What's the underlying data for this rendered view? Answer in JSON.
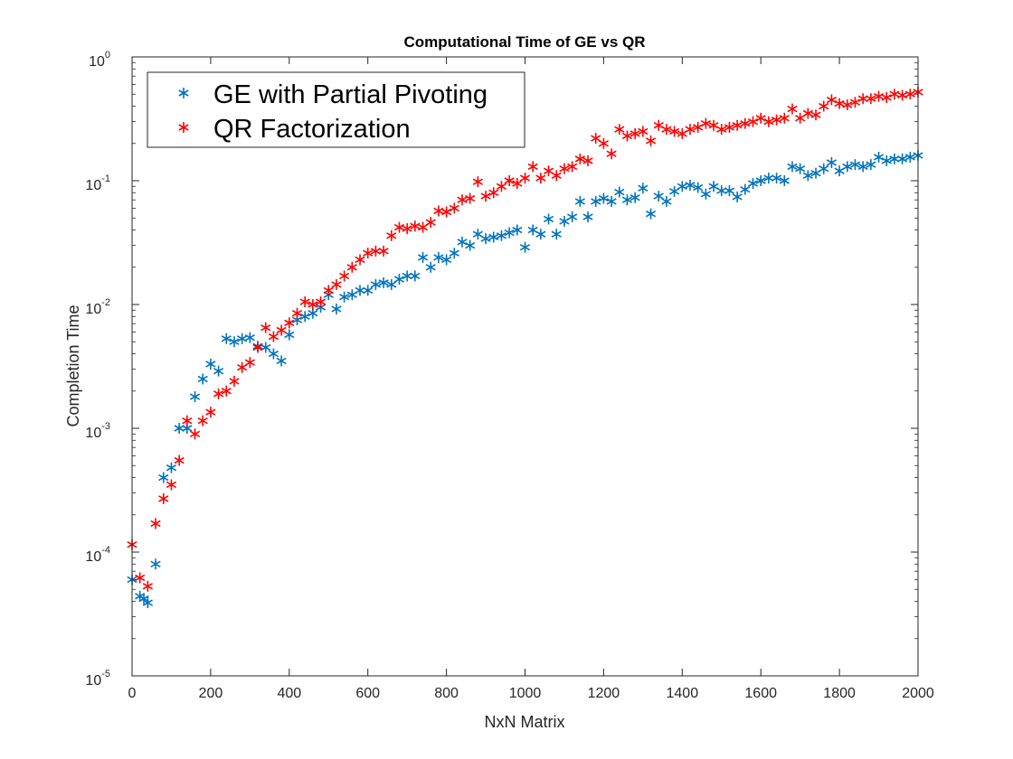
{
  "chart_data": {
    "type": "scatter",
    "title": "Computational Time of GE vs QR",
    "xlabel": "NxN Matrix",
    "ylabel": "Completion Time",
    "xlim": [
      0,
      2000
    ],
    "ylim_exponents": [
      -5,
      0
    ],
    "yscale": "log",
    "grid": false,
    "legend_position": "top-left",
    "marker": "asterisk",
    "x_ticks": [
      0,
      200,
      400,
      600,
      800,
      1000,
      1200,
      1400,
      1600,
      1800,
      2000
    ],
    "y_ticks": [
      {
        "base": "10",
        "exp": "-5"
      },
      {
        "base": "10",
        "exp": "-4"
      },
      {
        "base": "10",
        "exp": "-3"
      },
      {
        "base": "10",
        "exp": "-2"
      },
      {
        "base": "10",
        "exp": "-1"
      },
      {
        "base": "10",
        "exp": "0"
      }
    ],
    "series": [
      {
        "name": "GE with Partial Pivoting",
        "color": "#0072BD",
        "points": [
          [
            0,
            6e-05
          ],
          [
            20,
            4.4e-05
          ],
          [
            30,
            4.2e-05
          ],
          [
            40,
            3.9e-05
          ],
          [
            60,
            8e-05
          ],
          [
            80,
            0.0004
          ],
          [
            100,
            0.00048
          ],
          [
            120,
            0.001
          ],
          [
            140,
            0.001
          ],
          [
            160,
            0.0018
          ],
          [
            180,
            0.0025
          ],
          [
            200,
            0.0033
          ],
          [
            220,
            0.0029
          ],
          [
            240,
            0.0053
          ],
          [
            260,
            0.005
          ],
          [
            280,
            0.0053
          ],
          [
            300,
            0.0054
          ],
          [
            320,
            0.0046
          ],
          [
            340,
            0.0045
          ],
          [
            360,
            0.004
          ],
          [
            380,
            0.0035
          ],
          [
            400,
            0.0057
          ],
          [
            420,
            0.0075
          ],
          [
            440,
            0.008
          ],
          [
            460,
            0.0085
          ],
          [
            480,
            0.0095
          ],
          [
            500,
            0.012
          ],
          [
            520,
            0.0092
          ],
          [
            540,
            0.0115
          ],
          [
            560,
            0.012
          ],
          [
            580,
            0.013
          ],
          [
            600,
            0.013
          ],
          [
            620,
            0.0145
          ],
          [
            640,
            0.015
          ],
          [
            660,
            0.0145
          ],
          [
            680,
            0.016
          ],
          [
            700,
            0.017
          ],
          [
            720,
            0.017
          ],
          [
            740,
            0.024
          ],
          [
            760,
            0.02
          ],
          [
            780,
            0.024
          ],
          [
            800,
            0.023
          ],
          [
            820,
            0.026
          ],
          [
            840,
            0.032
          ],
          [
            860,
            0.03
          ],
          [
            880,
            0.037
          ],
          [
            900,
            0.034
          ],
          [
            920,
            0.035
          ],
          [
            940,
            0.036
          ],
          [
            960,
            0.038
          ],
          [
            980,
            0.04
          ],
          [
            1000,
            0.029
          ],
          [
            1020,
            0.04
          ],
          [
            1040,
            0.037
          ],
          [
            1060,
            0.049
          ],
          [
            1080,
            0.037
          ],
          [
            1100,
            0.047
          ],
          [
            1120,
            0.051
          ],
          [
            1140,
            0.068
          ],
          [
            1160,
            0.051
          ],
          [
            1180,
            0.068
          ],
          [
            1200,
            0.072
          ],
          [
            1220,
            0.068
          ],
          [
            1240,
            0.081
          ],
          [
            1260,
            0.07
          ],
          [
            1280,
            0.073
          ],
          [
            1300,
            0.087
          ],
          [
            1320,
            0.054
          ],
          [
            1340,
            0.075
          ],
          [
            1360,
            0.068
          ],
          [
            1380,
            0.082
          ],
          [
            1400,
            0.09
          ],
          [
            1420,
            0.092
          ],
          [
            1440,
            0.088
          ],
          [
            1460,
            0.078
          ],
          [
            1480,
            0.09
          ],
          [
            1500,
            0.083
          ],
          [
            1520,
            0.083
          ],
          [
            1540,
            0.074
          ],
          [
            1560,
            0.085
          ],
          [
            1580,
            0.095
          ],
          [
            1600,
            0.1
          ],
          [
            1620,
            0.105
          ],
          [
            1640,
            0.105
          ],
          [
            1660,
            0.1
          ],
          [
            1680,
            0.13
          ],
          [
            1700,
            0.125
          ],
          [
            1720,
            0.11
          ],
          [
            1740,
            0.115
          ],
          [
            1760,
            0.125
          ],
          [
            1780,
            0.14
          ],
          [
            1800,
            0.12
          ],
          [
            1820,
            0.13
          ],
          [
            1840,
            0.135
          ],
          [
            1860,
            0.13
          ],
          [
            1880,
            0.135
          ],
          [
            1900,
            0.155
          ],
          [
            1920,
            0.145
          ],
          [
            1940,
            0.15
          ],
          [
            1960,
            0.15
          ],
          [
            1980,
            0.155
          ],
          [
            2000,
            0.16
          ]
        ]
      },
      {
        "name": "QR Factorization",
        "color": "#FF0000",
        "points": [
          [
            0,
            0.000115
          ],
          [
            20,
            6.2e-05
          ],
          [
            40,
            5.3e-05
          ],
          [
            60,
            0.00017
          ],
          [
            80,
            0.00027
          ],
          [
            100,
            0.00035
          ],
          [
            120,
            0.00055
          ],
          [
            140,
            0.00115
          ],
          [
            160,
            0.0009
          ],
          [
            180,
            0.00115
          ],
          [
            200,
            0.00135
          ],
          [
            220,
            0.0019
          ],
          [
            240,
            0.002
          ],
          [
            260,
            0.0024
          ],
          [
            280,
            0.0031
          ],
          [
            300,
            0.0034
          ],
          [
            320,
            0.0045
          ],
          [
            340,
            0.0065
          ],
          [
            360,
            0.0055
          ],
          [
            380,
            0.0062
          ],
          [
            400,
            0.0071
          ],
          [
            420,
            0.0085
          ],
          [
            440,
            0.0105
          ],
          [
            460,
            0.01
          ],
          [
            480,
            0.0105
          ],
          [
            500,
            0.013
          ],
          [
            520,
            0.0145
          ],
          [
            540,
            0.017
          ],
          [
            560,
            0.02
          ],
          [
            580,
            0.023
          ],
          [
            600,
            0.026
          ],
          [
            620,
            0.027
          ],
          [
            640,
            0.027
          ],
          [
            660,
            0.036
          ],
          [
            680,
            0.042
          ],
          [
            700,
            0.041
          ],
          [
            720,
            0.043
          ],
          [
            740,
            0.042
          ],
          [
            760,
            0.046
          ],
          [
            780,
            0.057
          ],
          [
            800,
            0.056
          ],
          [
            820,
            0.06
          ],
          [
            840,
            0.07
          ],
          [
            860,
            0.072
          ],
          [
            880,
            0.098
          ],
          [
            900,
            0.075
          ],
          [
            920,
            0.08
          ],
          [
            940,
            0.09
          ],
          [
            960,
            0.1
          ],
          [
            980,
            0.095
          ],
          [
            1000,
            0.105
          ],
          [
            1020,
            0.13
          ],
          [
            1040,
            0.105
          ],
          [
            1060,
            0.12
          ],
          [
            1080,
            0.11
          ],
          [
            1100,
            0.125
          ],
          [
            1120,
            0.13
          ],
          [
            1140,
            0.15
          ],
          [
            1160,
            0.145
          ],
          [
            1180,
            0.22
          ],
          [
            1200,
            0.2
          ],
          [
            1220,
            0.165
          ],
          [
            1240,
            0.26
          ],
          [
            1260,
            0.23
          ],
          [
            1280,
            0.24
          ],
          [
            1300,
            0.25
          ],
          [
            1320,
            0.21
          ],
          [
            1340,
            0.28
          ],
          [
            1360,
            0.26
          ],
          [
            1380,
            0.25
          ],
          [
            1400,
            0.24
          ],
          [
            1420,
            0.26
          ],
          [
            1440,
            0.27
          ],
          [
            1460,
            0.29
          ],
          [
            1480,
            0.28
          ],
          [
            1500,
            0.26
          ],
          [
            1520,
            0.27
          ],
          [
            1540,
            0.28
          ],
          [
            1560,
            0.29
          ],
          [
            1580,
            0.3
          ],
          [
            1600,
            0.32
          ],
          [
            1620,
            0.3
          ],
          [
            1640,
            0.31
          ],
          [
            1660,
            0.32
          ],
          [
            1680,
            0.38
          ],
          [
            1700,
            0.32
          ],
          [
            1720,
            0.35
          ],
          [
            1740,
            0.34
          ],
          [
            1760,
            0.4
          ],
          [
            1780,
            0.45
          ],
          [
            1800,
            0.42
          ],
          [
            1820,
            0.41
          ],
          [
            1840,
            0.43
          ],
          [
            1860,
            0.46
          ],
          [
            1880,
            0.46
          ],
          [
            1900,
            0.48
          ],
          [
            1920,
            0.47
          ],
          [
            1940,
            0.5
          ],
          [
            1960,
            0.49
          ],
          [
            1980,
            0.5
          ],
          [
            2000,
            0.52
          ]
        ]
      }
    ]
  }
}
